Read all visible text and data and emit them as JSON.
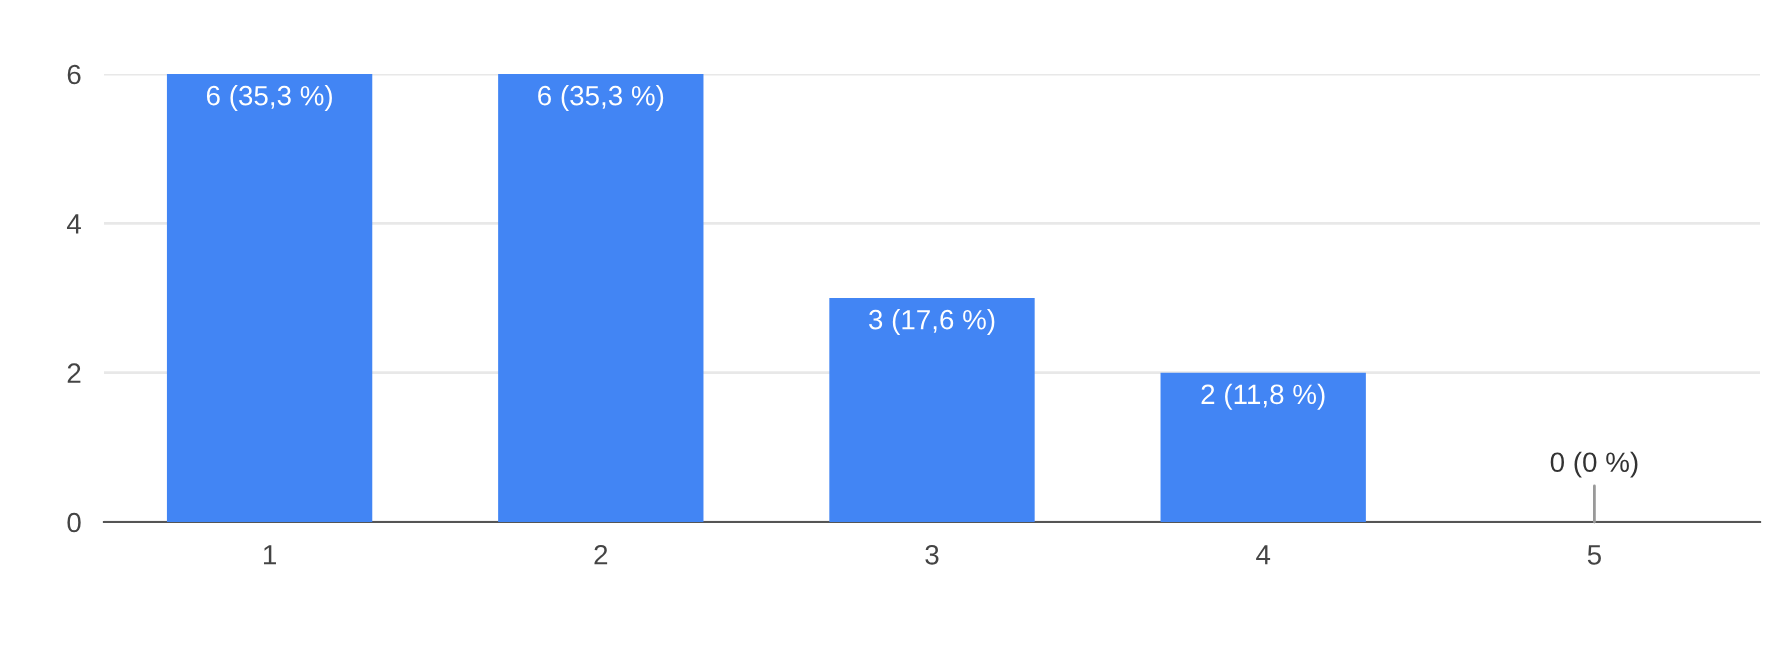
{
  "chart_data": {
    "type": "bar",
    "categories": [
      "1",
      "2",
      "3",
      "4",
      "5"
    ],
    "values": [
      6,
      6,
      3,
      2,
      0
    ],
    "color": "#4285f4",
    "value_labels": [
      "6 (35,3 %)",
      "6 (35,3 %)",
      "3 (17,6 %)",
      "2 (11,8 %)",
      "0 (0 %)"
    ],
    "ylim": [
      0,
      6
    ],
    "yticks": [
      0,
      2,
      4,
      6
    ],
    "grid": "y",
    "legend": false
  }
}
